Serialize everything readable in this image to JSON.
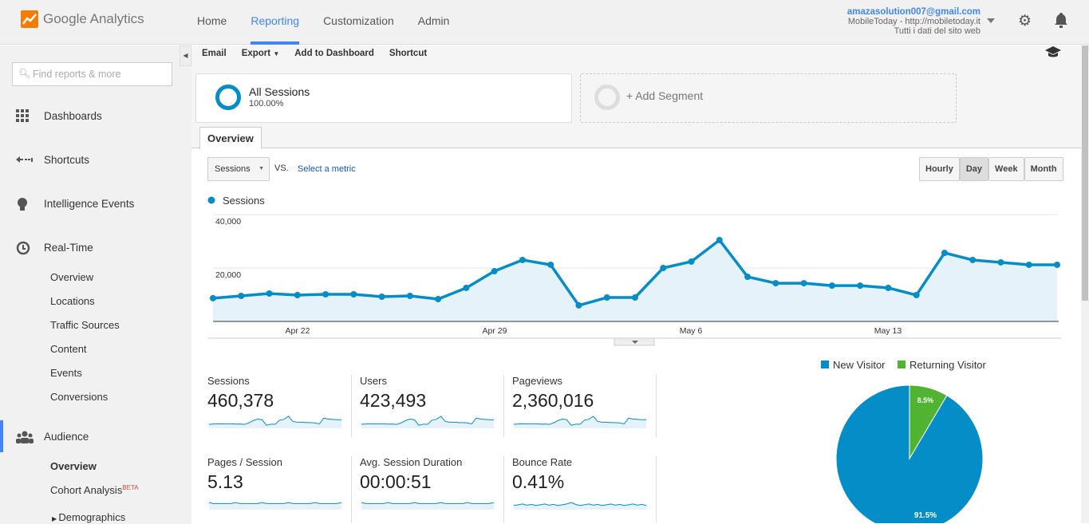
{
  "app": {
    "logo": "Google Analytics"
  },
  "nav": [
    {
      "label": "Home"
    },
    {
      "label": "Reporting"
    },
    {
      "label": "Customization"
    },
    {
      "label": "Admin"
    }
  ],
  "account": {
    "email": "amazasolution007@gmail.com",
    "property": "MobileToday - http://mobiletoday.it",
    "view": "Tutti i dati del sito web"
  },
  "sidebar": {
    "search_placeholder": "Find reports & more",
    "items": [
      {
        "label": "Dashboards",
        "icon": "grid-icon"
      },
      {
        "label": "Shortcuts",
        "icon": "shortcut-arrow-icon"
      },
      {
        "label": "Intelligence Events",
        "icon": "lightbulb-icon"
      },
      {
        "label": "Real-Time",
        "icon": "clock-icon"
      }
    ],
    "realtime_sub": [
      "Overview",
      "Locations",
      "Traffic Sources",
      "Content",
      "Events",
      "Conversions"
    ],
    "audience": {
      "label": "Audience",
      "icon": "people-icon",
      "sub": {
        "overview": "Overview",
        "cohort": "Cohort Analysis",
        "beta": "BETA",
        "demographics": "Demographics"
      }
    }
  },
  "toolbar": {
    "email": "Email",
    "export": "Export",
    "add_dashboard": "Add to Dashboard",
    "shortcut": "Shortcut"
  },
  "segments": {
    "all": {
      "name": "All Sessions",
      "pct": "100.00%"
    },
    "add": "+ Add Segment"
  },
  "tab": "Overview",
  "controls": {
    "metric": "Sessions",
    "vs": "VS.",
    "select_metric": "Select a metric",
    "granularity": [
      "Hourly",
      "Day",
      "Week",
      "Month"
    ],
    "selected": "Day"
  },
  "colors": {
    "accent": "#058dc7",
    "new_visitor": "#058dc7",
    "returning_visitor": "#50b432"
  },
  "chart_data": [
    {
      "type": "area",
      "legend": "Sessions",
      "ylim": [
        0,
        40000
      ],
      "yticks": [
        "40,000",
        "20,000"
      ],
      "xticks": [
        "Apr 22",
        "Apr 29",
        "May 6",
        "May 13"
      ],
      "grid": true,
      "x": [
        "Apr 19",
        "Apr 20",
        "Apr 21",
        "Apr 22",
        "Apr 23",
        "Apr 24",
        "Apr 25",
        "Apr 26",
        "Apr 27",
        "Apr 28",
        "Apr 29",
        "Apr 30",
        "May 1",
        "May 2",
        "May 3",
        "May 4",
        "May 5",
        "May 6",
        "May 7",
        "May 8",
        "May 9",
        "May 10",
        "May 11",
        "May 12",
        "May 13",
        "May 14",
        "May 15",
        "May 16",
        "May 17",
        "May 18",
        "May 19"
      ],
      "values": [
        8700,
        9550,
        10450,
        9850,
        10150,
        10150,
        9250,
        9550,
        8350,
        12550,
        18800,
        23000,
        21200,
        6000,
        8950,
        8950,
        20000,
        22400,
        30450,
        16700,
        14300,
        14300,
        13400,
        13400,
        12550,
        9850,
        25650,
        23000,
        22100,
        21200,
        21200
      ]
    },
    {
      "type": "pie",
      "legend": [
        "New Visitor",
        "Returning Visitor"
      ],
      "values": [
        91.5,
        8.5
      ],
      "labels": [
        "91.5%",
        "8.5%"
      ]
    }
  ],
  "metrics": [
    {
      "label": "Sessions",
      "value": "460,378"
    },
    {
      "label": "Users",
      "value": "423,493"
    },
    {
      "label": "Pageviews",
      "value": "2,360,016"
    },
    {
      "label": "Pages / Session",
      "value": "5.13"
    },
    {
      "label": "Avg. Session Duration",
      "value": "00:00:51"
    },
    {
      "label": "Bounce Rate",
      "value": "0.41%"
    }
  ]
}
